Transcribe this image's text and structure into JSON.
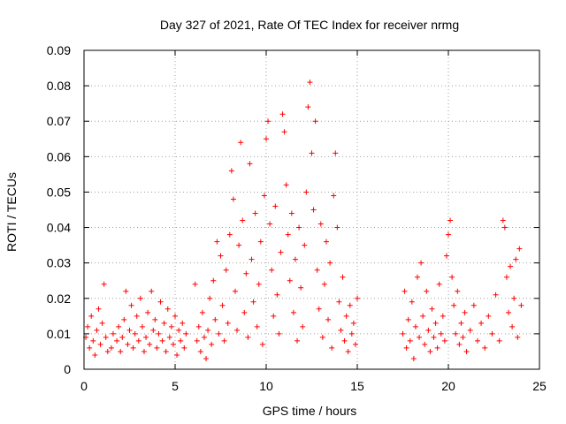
{
  "chart_data": {
    "type": "scatter",
    "title": "Day 327 of 2021, Rate Of TEC Index for receiver nrmg",
    "xlabel": "GPS time / hours",
    "ylabel": "ROTI / TECUs",
    "xlim": [
      0,
      25
    ],
    "ylim": [
      0,
      0.09
    ],
    "xticks": [
      0,
      5,
      10,
      15,
      20,
      25
    ],
    "xtick_labels": [
      "0",
      "5",
      "10",
      "15",
      "20",
      "25"
    ],
    "yticks": [
      0,
      0.01,
      0.02,
      0.03,
      0.04,
      0.05,
      0.06,
      0.07,
      0.08,
      0.09
    ],
    "ytick_labels": [
      "0",
      "0.01",
      "0.02",
      "0.03",
      "0.04",
      "0.05",
      "0.06",
      "0.07",
      "0.08",
      "0.09"
    ],
    "grid": true,
    "marker": "+",
    "marker_color": "#ff0000",
    "series": [
      {
        "name": "ROTI",
        "points": [
          [
            0.1,
            0.009
          ],
          [
            0.2,
            0.012
          ],
          [
            0.3,
            0.006
          ],
          [
            0.4,
            0.015
          ],
          [
            0.5,
            0.008
          ],
          [
            0.6,
            0.004
          ],
          [
            0.7,
            0.011
          ],
          [
            0.8,
            0.017
          ],
          [
            0.9,
            0.007
          ],
          [
            1.0,
            0.013
          ],
          [
            1.1,
            0.024
          ],
          [
            1.2,
            0.009
          ],
          [
            1.3,
            0.005
          ],
          [
            1.5,
            0.006
          ],
          [
            1.6,
            0.01
          ],
          [
            1.8,
            0.008
          ],
          [
            1.9,
            0.012
          ],
          [
            2.0,
            0.005
          ],
          [
            2.1,
            0.009
          ],
          [
            2.2,
            0.014
          ],
          [
            2.3,
            0.022
          ],
          [
            2.4,
            0.007
          ],
          [
            2.5,
            0.011
          ],
          [
            2.6,
            0.018
          ],
          [
            2.7,
            0.006
          ],
          [
            2.8,
            0.01
          ],
          [
            2.9,
            0.015
          ],
          [
            3.0,
            0.008
          ],
          [
            3.1,
            0.02
          ],
          [
            3.2,
            0.012
          ],
          [
            3.3,
            0.005
          ],
          [
            3.4,
            0.009
          ],
          [
            3.5,
            0.016
          ],
          [
            3.6,
            0.007
          ],
          [
            3.7,
            0.022
          ],
          [
            3.8,
            0.011
          ],
          [
            3.9,
            0.014
          ],
          [
            4.0,
            0.006
          ],
          [
            4.1,
            0.01
          ],
          [
            4.2,
            0.019
          ],
          [
            4.3,
            0.008
          ],
          [
            4.4,
            0.013
          ],
          [
            4.5,
            0.005
          ],
          [
            4.6,
            0.017
          ],
          [
            4.7,
            0.009
          ],
          [
            4.8,
            0.012
          ],
          [
            4.9,
            0.007
          ],
          [
            5.0,
            0.015
          ],
          [
            5.1,
            0.004
          ],
          [
            5.2,
            0.011
          ],
          [
            5.3,
            0.008
          ],
          [
            5.4,
            0.013
          ],
          [
            5.5,
            0.006
          ],
          [
            5.6,
            0.01
          ],
          [
            6.1,
            0.024
          ],
          [
            6.2,
            0.008
          ],
          [
            6.3,
            0.012
          ],
          [
            6.4,
            0.005
          ],
          [
            6.5,
            0.016
          ],
          [
            6.6,
            0.009
          ],
          [
            6.7,
            0.003
          ],
          [
            6.8,
            0.011
          ],
          [
            6.9,
            0.02
          ],
          [
            7.0,
            0.007
          ],
          [
            7.1,
            0.025
          ],
          [
            7.2,
            0.014
          ],
          [
            7.3,
            0.036
          ],
          [
            7.4,
            0.01
          ],
          [
            7.5,
            0.032
          ],
          [
            7.6,
            0.018
          ],
          [
            7.7,
            0.008
          ],
          [
            7.8,
            0.028
          ],
          [
            7.9,
            0.013
          ],
          [
            8.0,
            0.038
          ],
          [
            8.1,
            0.056
          ],
          [
            8.2,
            0.048
          ],
          [
            8.3,
            0.022
          ],
          [
            8.4,
            0.011
          ],
          [
            8.5,
            0.035
          ],
          [
            8.6,
            0.064
          ],
          [
            8.7,
            0.042
          ],
          [
            8.8,
            0.016
          ],
          [
            8.9,
            0.027
          ],
          [
            9.0,
            0.009
          ],
          [
            9.1,
            0.058
          ],
          [
            9.2,
            0.031
          ],
          [
            9.3,
            0.019
          ],
          [
            9.4,
            0.044
          ],
          [
            9.5,
            0.012
          ],
          [
            9.6,
            0.024
          ],
          [
            9.7,
            0.036
          ],
          [
            9.8,
            0.007
          ],
          [
            9.9,
            0.049
          ],
          [
            10.0,
            0.065
          ],
          [
            10.1,
            0.07
          ],
          [
            10.2,
            0.041
          ],
          [
            10.3,
            0.028
          ],
          [
            10.4,
            0.015
          ],
          [
            10.5,
            0.046
          ],
          [
            10.6,
            0.021
          ],
          [
            10.7,
            0.01
          ],
          [
            10.8,
            0.033
          ],
          [
            10.9,
            0.072
          ],
          [
            11.0,
            0.067
          ],
          [
            11.1,
            0.052
          ],
          [
            11.2,
            0.038
          ],
          [
            11.3,
            0.025
          ],
          [
            11.4,
            0.044
          ],
          [
            11.5,
            0.016
          ],
          [
            11.6,
            0.031
          ],
          [
            11.7,
            0.008
          ],
          [
            11.8,
            0.04
          ],
          [
            11.9,
            0.023
          ],
          [
            12.0,
            0.012
          ],
          [
            12.1,
            0.035
          ],
          [
            12.2,
            0.05
          ],
          [
            12.3,
            0.074
          ],
          [
            12.4,
            0.081
          ],
          [
            12.5,
            0.061
          ],
          [
            12.6,
            0.045
          ],
          [
            12.7,
            0.07
          ],
          [
            12.8,
            0.028
          ],
          [
            12.9,
            0.017
          ],
          [
            13.0,
            0.041
          ],
          [
            13.1,
            0.009
          ],
          [
            13.2,
            0.024
          ],
          [
            13.3,
            0.036
          ],
          [
            13.4,
            0.014
          ],
          [
            13.5,
            0.03
          ],
          [
            13.6,
            0.006
          ],
          [
            13.7,
            0.049
          ],
          [
            13.8,
            0.061
          ],
          [
            13.9,
            0.04
          ],
          [
            14.0,
            0.019
          ],
          [
            14.1,
            0.011
          ],
          [
            14.2,
            0.026
          ],
          [
            14.3,
            0.008
          ],
          [
            14.4,
            0.015
          ],
          [
            14.5,
            0.005
          ],
          [
            14.6,
            0.018
          ],
          [
            14.7,
            0.01
          ],
          [
            14.8,
            0.013
          ],
          [
            14.9,
            0.007
          ],
          [
            15.0,
            0.02
          ],
          [
            17.5,
            0.01
          ],
          [
            17.6,
            0.022
          ],
          [
            17.7,
            0.006
          ],
          [
            17.8,
            0.014
          ],
          [
            17.9,
            0.008
          ],
          [
            18.0,
            0.019
          ],
          [
            18.1,
            0.003
          ],
          [
            18.2,
            0.012
          ],
          [
            18.3,
            0.026
          ],
          [
            18.4,
            0.009
          ],
          [
            18.5,
            0.03
          ],
          [
            18.6,
            0.015
          ],
          [
            18.7,
            0.007
          ],
          [
            18.8,
            0.022
          ],
          [
            18.9,
            0.011
          ],
          [
            19.0,
            0.005
          ],
          [
            19.1,
            0.017
          ],
          [
            19.2,
            0.009
          ],
          [
            19.3,
            0.013
          ],
          [
            19.4,
            0.006
          ],
          [
            19.5,
            0.024
          ],
          [
            19.6,
            0.01
          ],
          [
            19.7,
            0.015
          ],
          [
            19.8,
            0.008
          ],
          [
            19.9,
            0.032
          ],
          [
            20.0,
            0.038
          ],
          [
            20.1,
            0.042
          ],
          [
            20.2,
            0.026
          ],
          [
            20.3,
            0.018
          ],
          [
            20.4,
            0.01
          ],
          [
            20.5,
            0.022
          ],
          [
            20.6,
            0.007
          ],
          [
            20.7,
            0.013
          ],
          [
            20.8,
            0.009
          ],
          [
            20.9,
            0.016
          ],
          [
            21.0,
            0.005
          ],
          [
            21.2,
            0.011
          ],
          [
            21.4,
            0.018
          ],
          [
            21.6,
            0.008
          ],
          [
            21.8,
            0.013
          ],
          [
            22.0,
            0.006
          ],
          [
            22.2,
            0.015
          ],
          [
            22.4,
            0.01
          ],
          [
            22.6,
            0.021
          ],
          [
            22.8,
            0.008
          ],
          [
            23.0,
            0.042
          ],
          [
            23.1,
            0.04
          ],
          [
            23.2,
            0.026
          ],
          [
            23.3,
            0.016
          ],
          [
            23.4,
            0.029
          ],
          [
            23.5,
            0.012
          ],
          [
            23.6,
            0.02
          ],
          [
            23.7,
            0.031
          ],
          [
            23.8,
            0.009
          ],
          [
            23.9,
            0.034
          ],
          [
            24.0,
            0.018
          ]
        ]
      }
    ]
  }
}
